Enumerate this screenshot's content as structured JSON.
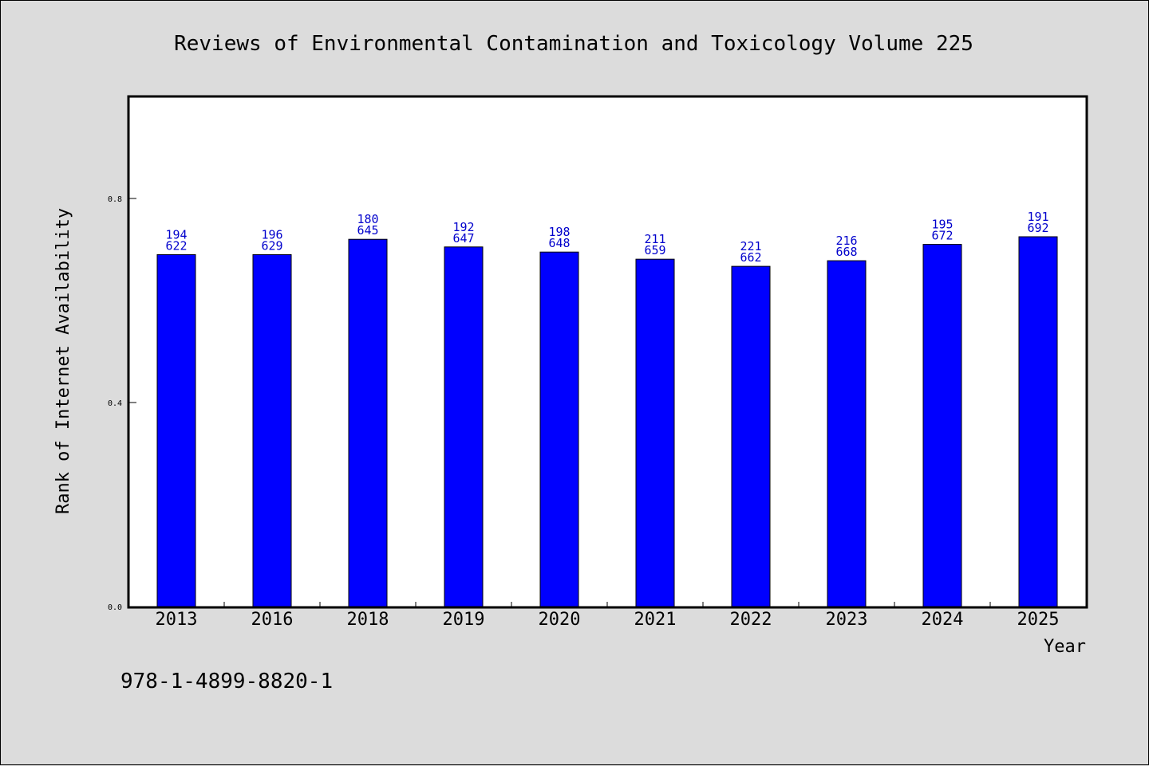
{
  "chart_data": {
    "type": "bar",
    "title": "Reviews of Environmental Contamination and Toxicology Volume 225",
    "xlabel": "Year",
    "ylabel": "Rank of Internet Availability",
    "categories": [
      "2013",
      "2016",
      "2018",
      "2019",
      "2020",
      "2021",
      "2022",
      "2023",
      "2024",
      "2025"
    ],
    "values": [
      0.69,
      0.69,
      0.72,
      0.705,
      0.695,
      0.681,
      0.667,
      0.678,
      0.71,
      0.725
    ],
    "label_top": [
      "194",
      "196",
      "180",
      "192",
      "198",
      "211",
      "221",
      "216",
      "195",
      "191"
    ],
    "label_bottom": [
      "622",
      "629",
      "645",
      "647",
      "648",
      "659",
      "662",
      "668",
      "672",
      "692"
    ],
    "ylim": [
      0,
      1.0
    ],
    "yticks": [
      0.0,
      0.4,
      0.8
    ],
    "ytick_labels": [
      "0.0",
      "0.4",
      "0.8"
    ],
    "grid": false,
    "bar_color": "#0000ff",
    "label_color": "#0000cc"
  },
  "footer": {
    "isbn": "978-1-4899-8820-1"
  }
}
